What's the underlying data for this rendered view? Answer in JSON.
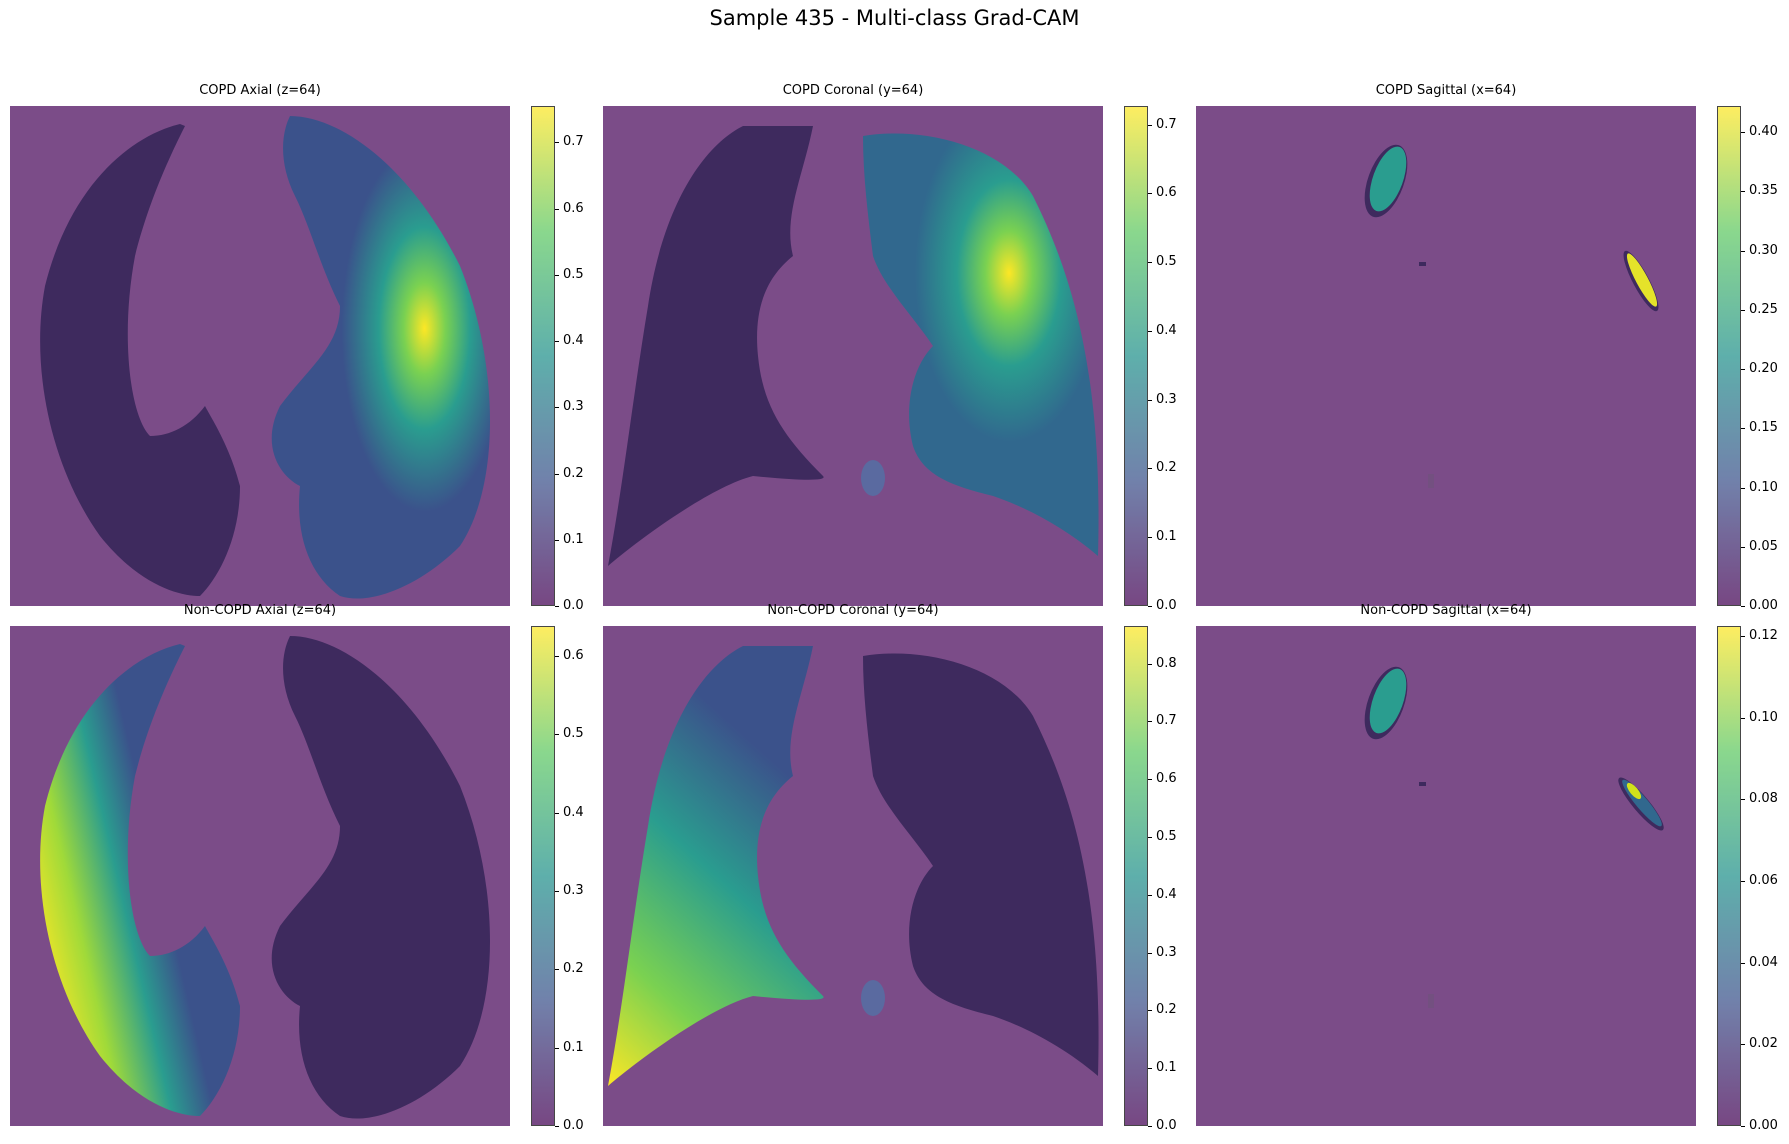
{
  "title": "Sample 435 - Multi-class Grad-CAM",
  "colormap": {
    "name": "viridis",
    "stops": [
      "#440154",
      "#3b528b",
      "#21918c",
      "#5ec962",
      "#fde725"
    ],
    "background": "#7b4c88",
    "alpha": 0.7
  },
  "panels": [
    {
      "id": "copd-axial",
      "title": "COPD Axial (z=64)",
      "view": "axial",
      "focus": "left-lung-hilum",
      "colorbar": {
        "min": 0.0,
        "max": 0.755,
        "ticks": [
          "0.0",
          "0.1",
          "0.2",
          "0.3",
          "0.4",
          "0.5",
          "0.6",
          "0.7"
        ],
        "tick_values": [
          0,
          0.1,
          0.2,
          0.3,
          0.4,
          0.5,
          0.6,
          0.7
        ]
      }
    },
    {
      "id": "copd-coronal",
      "title": "COPD Coronal (y=64)",
      "view": "coronal",
      "focus": "left-lung-upper",
      "colorbar": {
        "min": 0.0,
        "max": 0.727,
        "ticks": [
          "0.0",
          "0.1",
          "0.2",
          "0.3",
          "0.4",
          "0.5",
          "0.6",
          "0.7"
        ],
        "tick_values": [
          0,
          0.1,
          0.2,
          0.3,
          0.4,
          0.5,
          0.6,
          0.7
        ]
      }
    },
    {
      "id": "copd-sagittal",
      "title": "COPD Sagittal (x=64)",
      "view": "sagittal",
      "focus": "right-spot",
      "colorbar": {
        "min": 0.0,
        "max": 0.422,
        "ticks": [
          "0.00",
          "0.05",
          "0.10",
          "0.15",
          "0.20",
          "0.25",
          "0.30",
          "0.35",
          "0.40"
        ],
        "tick_values": [
          0,
          0.05,
          0.1,
          0.15,
          0.2,
          0.25,
          0.3,
          0.35,
          0.4
        ]
      }
    },
    {
      "id": "noncopd-axial",
      "title": "Non-COPD Axial (z=64)",
      "view": "axial",
      "focus": "right-lung-lateral",
      "colorbar": {
        "min": 0.0,
        "max": 0.638,
        "ticks": [
          "0.0",
          "0.1",
          "0.2",
          "0.3",
          "0.4",
          "0.5",
          "0.6"
        ],
        "tick_values": [
          0,
          0.1,
          0.2,
          0.3,
          0.4,
          0.5,
          0.6
        ]
      }
    },
    {
      "id": "noncopd-coronal",
      "title": "Non-COPD Coronal (y=64)",
      "view": "coronal",
      "focus": "right-lung-lower",
      "colorbar": {
        "min": 0.0,
        "max": 0.865,
        "ticks": [
          "0.0",
          "0.1",
          "0.2",
          "0.3",
          "0.4",
          "0.5",
          "0.6",
          "0.7",
          "0.8"
        ],
        "tick_values": [
          0,
          0.1,
          0.2,
          0.3,
          0.4,
          0.5,
          0.6,
          0.7,
          0.8
        ]
      }
    },
    {
      "id": "noncopd-sagittal",
      "title": "Non-COPD Sagittal (x=64)",
      "view": "sagittal",
      "focus": "mixed-spots",
      "colorbar": {
        "min": 0.0,
        "max": 0.1225,
        "ticks": [
          "0.00",
          "0.02",
          "0.04",
          "0.06",
          "0.08",
          "0.10",
          "0.12"
        ],
        "tick_values": [
          0,
          0.02,
          0.04,
          0.06,
          0.08,
          0.1,
          0.12
        ]
      }
    }
  ]
}
